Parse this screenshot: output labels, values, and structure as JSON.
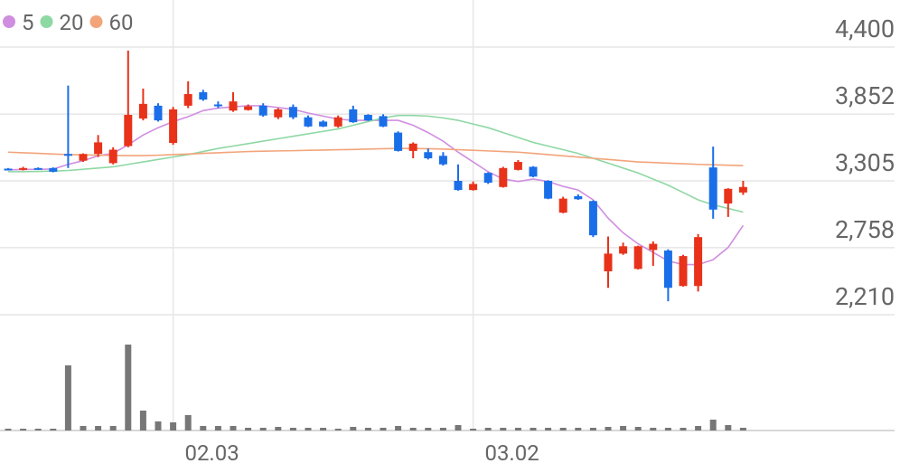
{
  "chart_data": {
    "type": "candlestick",
    "categories": [
      null,
      null,
      null,
      null,
      null,
      null,
      null,
      null,
      null,
      null,
      null,
      "02.03",
      null,
      null,
      null,
      null,
      null,
      null,
      null,
      null,
      null,
      null,
      null,
      null,
      null,
      null,
      null,
      null,
      null,
      null,
      null,
      "03.02",
      null,
      null,
      null,
      null,
      null,
      null,
      null,
      null,
      null,
      null,
      null,
      null,
      null,
      null,
      null,
      null,
      null,
      null
    ],
    "open": [
      3405,
      3395,
      3410,
      3410,
      3525,
      3470,
      3525,
      3450,
      3590,
      3815,
      3920,
      3615,
      3920,
      4030,
      3930,
      3880,
      3885,
      3920,
      3825,
      3910,
      3825,
      3790,
      3750,
      3890,
      3845,
      3835,
      3700,
      3550,
      3540,
      3510,
      3305,
      3230,
      3370,
      3255,
      3395,
      3420,
      3305,
      3045,
      3180,
      3140,
      2565,
      2710,
      2585,
      2740,
      2735,
      2445,
      2445,
      3415,
      3120,
      3210
    ],
    "high": [
      3410,
      3420,
      3415,
      3415,
      4085,
      3530,
      3680,
      3580,
      4370,
      4060,
      3940,
      3910,
      4120,
      4050,
      3955,
      4030,
      3930,
      3940,
      3900,
      3930,
      3840,
      3800,
      3840,
      3920,
      3850,
      3850,
      3710,
      3620,
      3570,
      3540,
      3440,
      3300,
      3375,
      3420,
      3475,
      3425,
      3310,
      3175,
      3195,
      3145,
      2850,
      2800,
      2775,
      2810,
      2745,
      2700,
      2870,
      3585,
      3245,
      3305
    ],
    "low": [
      3390,
      3390,
      3395,
      3375,
      3410,
      3460,
      3500,
      3440,
      3580,
      3800,
      3790,
      3600,
      3900,
      3960,
      3900,
      3870,
      3880,
      3830,
      3810,
      3810,
      3745,
      3745,
      3740,
      3780,
      3795,
      3745,
      3545,
      3490,
      3480,
      3430,
      3225,
      3225,
      3280,
      3250,
      3390,
      3335,
      3155,
      3040,
      3150,
      2845,
      2430,
      2700,
      2580,
      2610,
      2320,
      2440,
      2400,
      2995,
      3010,
      3190
    ],
    "close": [
      3395,
      3410,
      3400,
      3380,
      3515,
      3525,
      3620,
      3560,
      3845,
      3935,
      3800,
      3890,
      4015,
      3970,
      3920,
      3955,
      3915,
      3840,
      3890,
      3825,
      3750,
      3750,
      3825,
      3785,
      3800,
      3750,
      3550,
      3610,
      3490,
      3440,
      3230,
      3280,
      3290,
      3410,
      3460,
      3340,
      3160,
      3160,
      3155,
      2860,
      2710,
      2770,
      2770,
      2790,
      2430,
      2690,
      2845,
      3070,
      3240,
      3255
    ],
    "up_color": "#e8321a",
    "down_color": "#1a6ee8",
    "ylim": [
      2210,
      4400
    ],
    "yticks": [
      {
        "value": 4400,
        "label": "4,400"
      },
      {
        "value": 3852,
        "label": "3,852"
      },
      {
        "value": 3305,
        "label": "3,305"
      },
      {
        "value": 2758,
        "label": "2,758"
      },
      {
        "value": 2210,
        "label": "2,210"
      }
    ],
    "grid": true,
    "ma_series": [
      {
        "name": "5",
        "color": "#d08ee0",
        "values": [
          3395,
          3398,
          3400,
          3402,
          3440,
          3470,
          3510,
          3530,
          3600,
          3680,
          3740,
          3790,
          3830,
          3880,
          3900,
          3910,
          3920,
          3920,
          3905,
          3890,
          3860,
          3835,
          3810,
          3800,
          3800,
          3800,
          3800,
          3760,
          3700,
          3630,
          3540,
          3460,
          3380,
          3320,
          3300,
          3320,
          3300,
          3260,
          3230,
          3150,
          3000,
          2880,
          2790,
          2720,
          2650,
          2620,
          2620,
          2660,
          2760,
          2940
        ]
      },
      {
        "name": "20",
        "color": "#8ed8a4",
        "values": [
          3380,
          3380,
          3382,
          3385,
          3390,
          3400,
          3410,
          3420,
          3440,
          3460,
          3480,
          3500,
          3520,
          3545,
          3570,
          3590,
          3610,
          3630,
          3650,
          3670,
          3690,
          3710,
          3730,
          3760,
          3790,
          3820,
          3840,
          3840,
          3835,
          3820,
          3800,
          3770,
          3740,
          3700,
          3660,
          3620,
          3590,
          3560,
          3530,
          3490,
          3450,
          3410,
          3370,
          3320,
          3270,
          3210,
          3150,
          3110,
          3080,
          3050
        ]
      },
      {
        "name": "60",
        "color": "#f2a47a",
        "values": [
          3540,
          3535,
          3530,
          3525,
          3520,
          3518,
          3515,
          3513,
          3512,
          3512,
          3515,
          3520,
          3525,
          3530,
          3535,
          3540,
          3545,
          3548,
          3550,
          3552,
          3555,
          3557,
          3560,
          3562,
          3565,
          3568,
          3570,
          3570,
          3568,
          3565,
          3560,
          3555,
          3550,
          3545,
          3540,
          3530,
          3520,
          3510,
          3500,
          3490,
          3480,
          3470,
          3460,
          3455,
          3450,
          3445,
          3440,
          3437,
          3433,
          3430
        ]
      }
    ],
    "volume": {
      "color": "#777777",
      "ylim": [
        0,
        100
      ],
      "values": [
        2,
        2,
        2,
        2,
        72,
        5,
        5,
        5,
        95,
        22,
        10,
        9,
        17,
        5,
        5,
        5,
        3,
        3,
        4,
        3,
        3,
        3,
        2,
        4,
        3,
        3,
        5,
        3,
        3,
        3,
        6,
        2,
        3,
        3,
        3,
        3,
        3,
        3,
        3,
        3,
        4,
        5,
        4,
        3,
        3,
        3,
        5,
        12,
        6,
        3
      ]
    }
  }
}
